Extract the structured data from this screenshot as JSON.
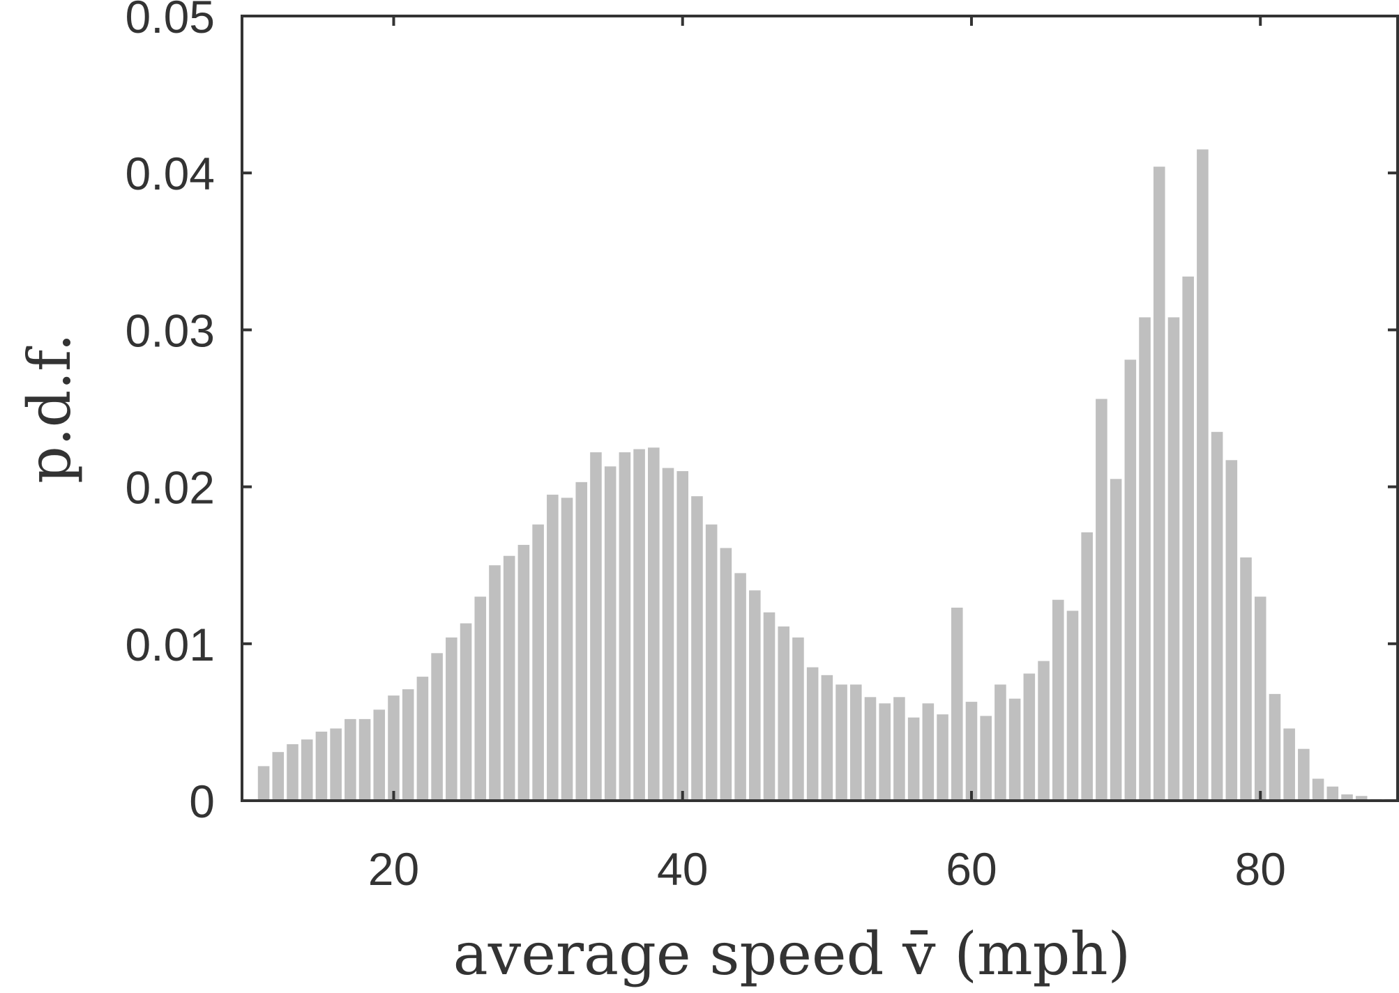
{
  "chart_data": {
    "type": "bar",
    "xlabel": "average speed v̄ (mph)",
    "ylabel": "p.d.f.",
    "xlim": [
      9.5,
      89.5
    ],
    "ylim": [
      0,
      0.05
    ],
    "x_ticks": [
      20,
      40,
      60,
      80
    ],
    "x_tick_labels": [
      "20",
      "40",
      "60",
      "80"
    ],
    "y_ticks": [
      0,
      0.01,
      0.02,
      0.03,
      0.04,
      0.05
    ],
    "y_tick_labels": [
      "0",
      "0.01",
      "0.02",
      "0.03",
      "0.04",
      "0.05"
    ],
    "grid": false,
    "bar_color": "#bfbfbf",
    "axis_color": "#333333",
    "bar_width": 0.8,
    "x": [
      11,
      12,
      13,
      14,
      15,
      16,
      17,
      18,
      19,
      20,
      21,
      22,
      23,
      24,
      25,
      26,
      27,
      28,
      29,
      30,
      31,
      32,
      33,
      34,
      35,
      36,
      37,
      38,
      39,
      40,
      41,
      42,
      43,
      44,
      45,
      46,
      47,
      48,
      49,
      50,
      51,
      52,
      53,
      54,
      55,
      56,
      57,
      58,
      59,
      60,
      61,
      62,
      63,
      64,
      65,
      66,
      67,
      68,
      69,
      70,
      71,
      72,
      73,
      74,
      75,
      76,
      77,
      78,
      79,
      80,
      81,
      82,
      83,
      84,
      85,
      86,
      87,
      88,
      89
    ],
    "values": [
      0.0022,
      0.0031,
      0.0036,
      0.0039,
      0.0044,
      0.0046,
      0.0052,
      0.0052,
      0.0058,
      0.0067,
      0.0071,
      0.0079,
      0.0094,
      0.0104,
      0.0113,
      0.013,
      0.015,
      0.0156,
      0.0163,
      0.0176,
      0.0195,
      0.0193,
      0.0203,
      0.0222,
      0.0213,
      0.0222,
      0.0224,
      0.0225,
      0.0212,
      0.021,
      0.0194,
      0.0176,
      0.0161,
      0.0145,
      0.0134,
      0.012,
      0.0111,
      0.0104,
      0.0085,
      0.008,
      0.0074,
      0.0074,
      0.0066,
      0.0062,
      0.0066,
      0.0053,
      0.0062,
      0.0055,
      0.0123,
      0.0063,
      0.0054,
      0.0074,
      0.0065,
      0.0081,
      0.0089,
      0.0128,
      0.0121,
      0.0171,
      0.0256,
      0.0205,
      0.0281,
      0.0308,
      0.0404,
      0.0308,
      0.0334,
      0.0415,
      0.0235,
      0.0217,
      0.0155,
      0.013,
      0.0068,
      0.0046,
      0.0033,
      0.0014,
      0.0009,
      0.0004,
      0.0003,
      0.0001,
      0.0001
    ]
  }
}
